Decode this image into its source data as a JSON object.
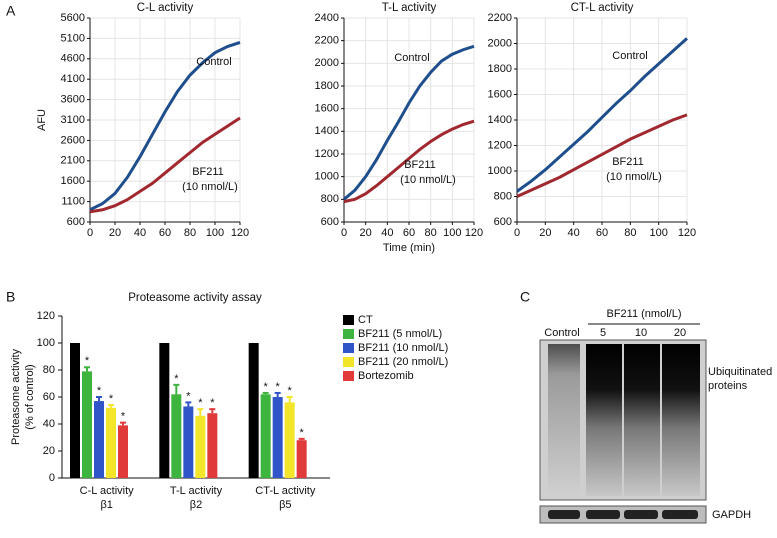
{
  "panel_labels": [
    "A",
    "B",
    "C"
  ],
  "chart_data": [
    {
      "type": "line",
      "title": "C-L activity",
      "y_label": "AFU",
      "x": [
        0,
        10,
        20,
        30,
        40,
        50,
        60,
        70,
        80,
        90,
        100,
        110,
        120
      ],
      "xlim": [
        0,
        120
      ],
      "xticks": [
        0,
        20,
        40,
        60,
        80,
        100,
        120
      ],
      "ylim": [
        600,
        5600
      ],
      "yticks": [
        600,
        1100,
        1600,
        2100,
        2600,
        3100,
        3600,
        4100,
        4600,
        5100,
        5600
      ],
      "grid": true,
      "annotations": [
        "Control",
        "BF211",
        "(10 nmol/L)"
      ],
      "series": [
        {
          "name": "Control",
          "color": "#1f4e8c",
          "values": [
            900,
            1050,
            1300,
            1700,
            2200,
            2750,
            3300,
            3800,
            4200,
            4500,
            4750,
            4900,
            5000
          ]
        },
        {
          "name": "BF211 (10 nmol/L)",
          "color": "#a0282e",
          "values": [
            850,
            900,
            1000,
            1150,
            1350,
            1550,
            1800,
            2050,
            2300,
            2550,
            2750,
            2950,
            3150
          ]
        }
      ]
    },
    {
      "type": "line",
      "title": "T-L activity",
      "x_label": "Time (min)",
      "x": [
        0,
        10,
        20,
        30,
        40,
        50,
        60,
        70,
        80,
        90,
        100,
        110,
        120
      ],
      "xlim": [
        0,
        120
      ],
      "xticks": [
        0,
        20,
        40,
        60,
        80,
        100,
        120
      ],
      "ylim": [
        600,
        2400
      ],
      "yticks": [
        600,
        800,
        1000,
        1200,
        1400,
        1600,
        1800,
        2000,
        2200,
        2400
      ],
      "grid": true,
      "annotations": [
        "Control",
        "BF211",
        "(10 nmol/L)"
      ],
      "series": [
        {
          "name": "Control",
          "color": "#1f4e8c",
          "values": [
            800,
            880,
            1000,
            1150,
            1320,
            1480,
            1650,
            1800,
            1920,
            2020,
            2080,
            2120,
            2150
          ]
        },
        {
          "name": "BF211 (10 nmol/L)",
          "color": "#a0282e",
          "values": [
            780,
            800,
            850,
            920,
            1000,
            1080,
            1160,
            1240,
            1310,
            1370,
            1420,
            1460,
            1490
          ]
        }
      ]
    },
    {
      "type": "line",
      "title": "CT-L activity",
      "x": [
        0,
        10,
        20,
        30,
        40,
        50,
        60,
        70,
        80,
        90,
        100,
        110,
        120
      ],
      "xlim": [
        0,
        120
      ],
      "xticks": [
        0,
        20,
        40,
        60,
        80,
        100,
        120
      ],
      "ylim": [
        600,
        2200
      ],
      "yticks": [
        600,
        800,
        1000,
        1200,
        1400,
        1600,
        1800,
        2000,
        2200
      ],
      "grid": true,
      "annotations": [
        "Control",
        "BF211",
        "(10 nmol/L)"
      ],
      "series": [
        {
          "name": "Control",
          "color": "#1f4e8c",
          "values": [
            840,
            920,
            1010,
            1110,
            1210,
            1310,
            1420,
            1530,
            1630,
            1740,
            1840,
            1940,
            2040
          ]
        },
        {
          "name": "BF211 (10 nmol/L)",
          "color": "#a0282e",
          "values": [
            800,
            850,
            900,
            950,
            1010,
            1070,
            1130,
            1190,
            1250,
            1300,
            1350,
            1400,
            1440
          ]
        }
      ]
    },
    {
      "type": "bar",
      "title": "Proteasome activity assay",
      "y_label": [
        "Proteasome activity",
        "(% of control)"
      ],
      "categories": [
        "C-L activity",
        "T-L activity",
        "CT-L activity"
      ],
      "subcategories": [
        "β1",
        "β2",
        "β5"
      ],
      "ylim": [
        0,
        120
      ],
      "yticks": [
        0,
        20,
        40,
        60,
        80,
        100,
        120
      ],
      "significance_marker": "*",
      "series": [
        {
          "name": "CT",
          "color": "#000000",
          "values": [
            100,
            100,
            100
          ],
          "errors": [
            0,
            0,
            0
          ],
          "significant": [
            false,
            false,
            false
          ]
        },
        {
          "name": "BF211 (5 nmol/L)",
          "color": "#3db43d",
          "values": [
            79,
            62,
            62
          ],
          "errors": [
            3,
            7,
            1
          ],
          "significant": [
            true,
            true,
            true
          ]
        },
        {
          "name": "BF211 (10 nmol/L)",
          "color": "#2f55c8",
          "values": [
            57,
            53,
            60
          ],
          "errors": [
            3,
            3,
            3
          ],
          "significant": [
            true,
            true,
            true
          ]
        },
        {
          "name": "BF211 (20 nmol/L)",
          "color": "#f2e52a",
          "values": [
            52,
            46,
            56
          ],
          "errors": [
            2,
            5,
            4
          ],
          "significant": [
            true,
            true,
            true
          ]
        },
        {
          "name": "Bortezomib",
          "color": "#e03a3a",
          "values": [
            39,
            48,
            28
          ],
          "errors": [
            2,
            3,
            1
          ],
          "significant": [
            true,
            true,
            true
          ]
        }
      ]
    }
  ],
  "blot": {
    "treatment": "BF211 (nmol/L)",
    "lanes": [
      "Control",
      "5",
      "10",
      "20"
    ],
    "bands": [
      "Ubiquitinated",
      "proteins",
      "GAPDH"
    ]
  }
}
